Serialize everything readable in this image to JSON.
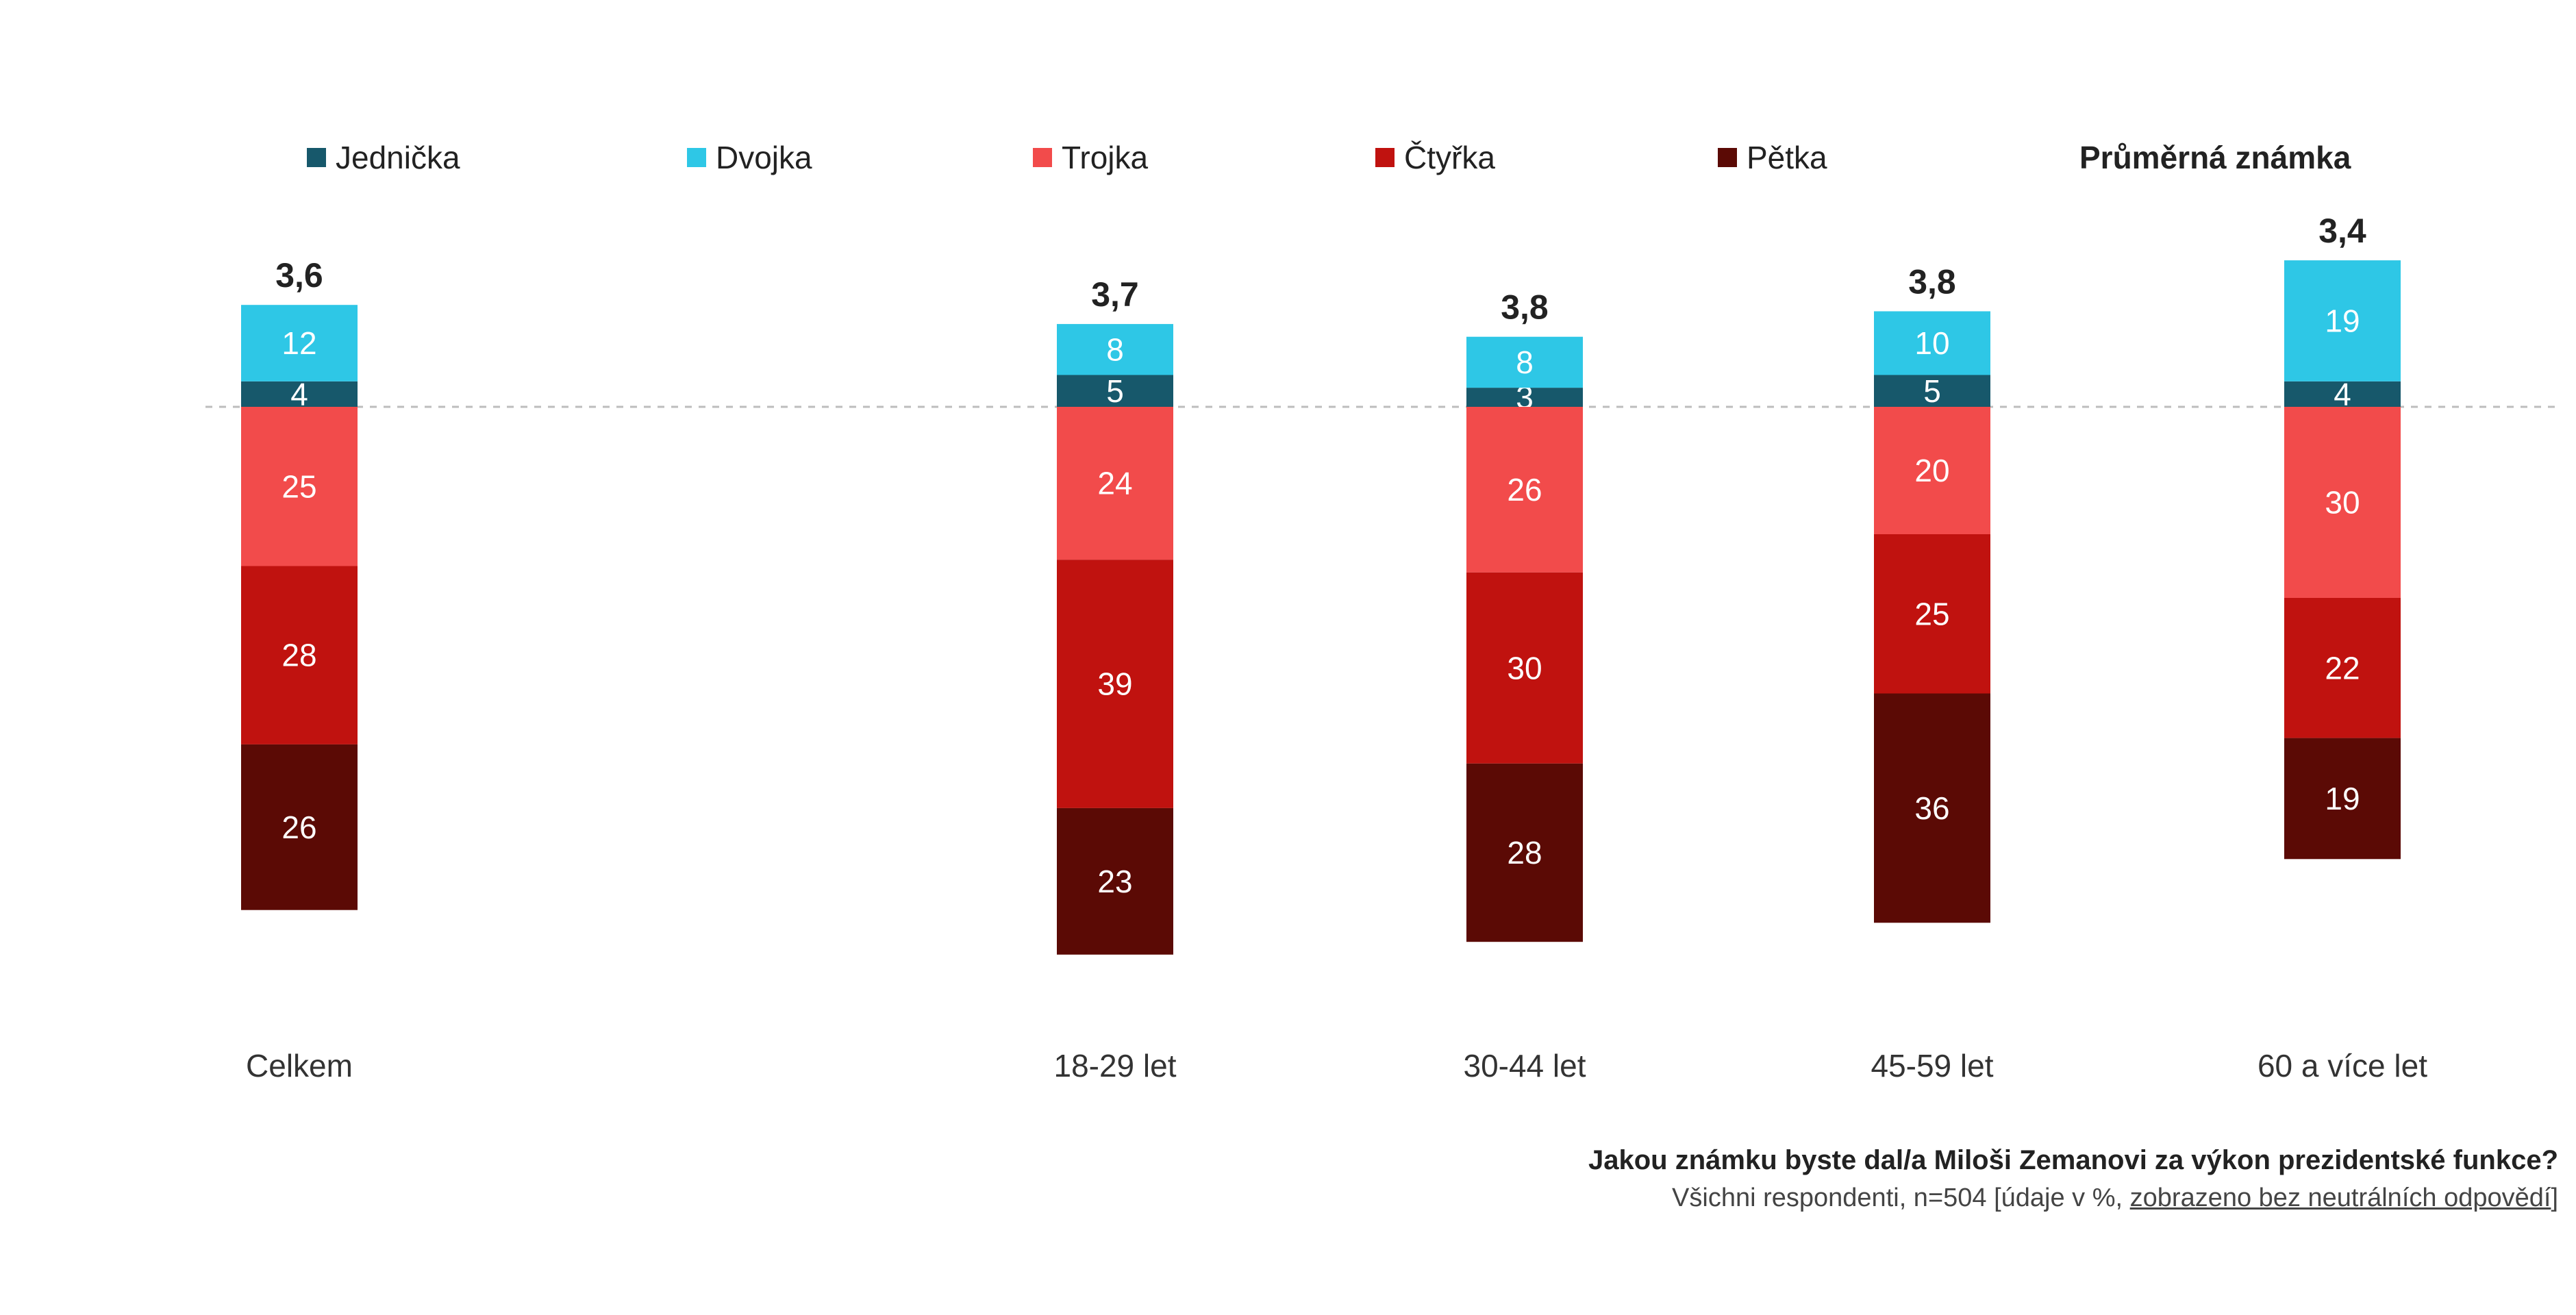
{
  "chart_data": {
    "type": "bar",
    "stacked": true,
    "categories": [
      "Celkem",
      "18-29 let",
      "30-44 let",
      "45-59 let",
      "60 a více let"
    ],
    "averages_label": "Průměrná známka",
    "averages": [
      "3,6",
      "3,7",
      "3,8",
      "3,8",
      "3,4"
    ],
    "series": [
      {
        "name": "Jednička",
        "color": "#17586b",
        "side": "positive",
        "values": [
          4,
          5,
          3,
          5,
          4
        ]
      },
      {
        "name": "Dvojka",
        "color": "#2ec7e6",
        "side": "positive",
        "values": [
          12,
          8,
          8,
          10,
          19
        ]
      },
      {
        "name": "Trojka",
        "color": "#f24b4b",
        "side": "negative",
        "values": [
          25,
          24,
          26,
          20,
          30
        ]
      },
      {
        "name": "Čtyřka",
        "color": "#c0120f",
        "side": "negative",
        "values": [
          28,
          39,
          30,
          25,
          22
        ]
      },
      {
        "name": "Pětka",
        "color": "#5b0a05",
        "side": "negative",
        "values": [
          26,
          23,
          28,
          36,
          19
        ]
      }
    ],
    "legend_position": "top",
    "baseline_dashed": true,
    "grid": false
  },
  "footer": {
    "question": "Jakou známku byste dal/a Miloši Zemanovi za výkon prezidentské funkce?",
    "note_prefix": "Všichni respondenti, n=504 [údaje v %, ",
    "note_underlined": "zobrazeno bez neutrálních odpovědí",
    "note_suffix": "]"
  }
}
